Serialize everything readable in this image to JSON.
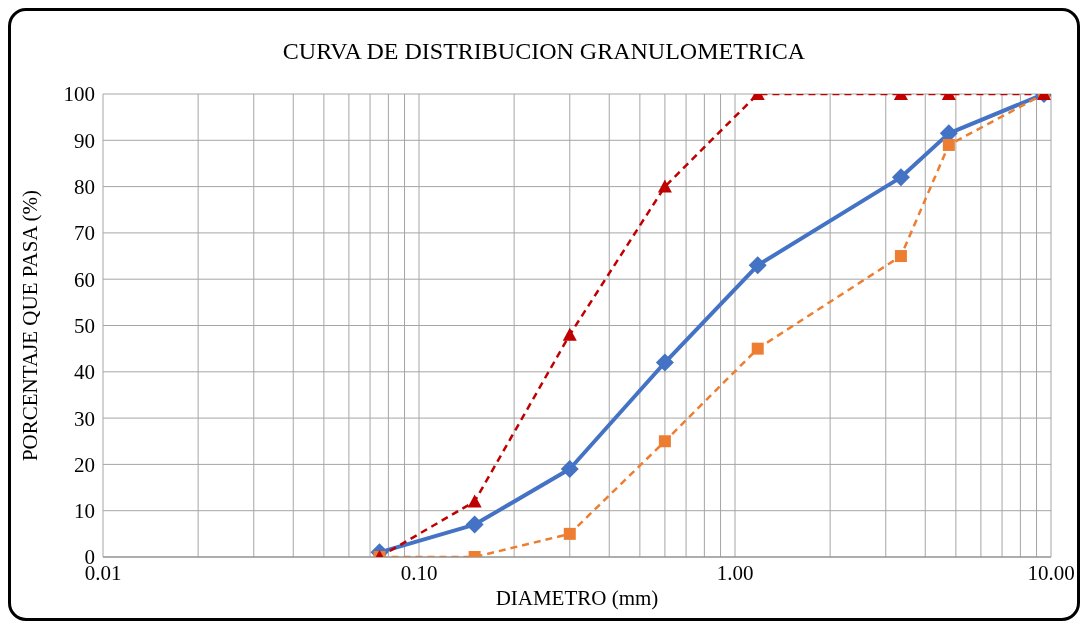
{
  "chart_data": {
    "type": "line",
    "title": "CURVA DE DISTRIBUCION GRANULOMETRICA",
    "xlabel": "DIAMETRO (mm)",
    "ylabel": "PORCENTAJE QUE PASA (%)",
    "log": "x",
    "x": [
      0.075,
      0.15,
      0.3,
      0.6,
      1.18,
      3.35,
      4.75,
      9.5
    ],
    "series": [
      {
        "color": "#4472c4",
        "marker": "diamond",
        "line_style": "solid",
        "values": [
          1,
          7,
          19,
          42,
          63,
          82,
          91.5,
          100
        ]
      },
      {
        "color": "#ed7d31",
        "marker": "square",
        "line_style": "dashed",
        "values": [
          0,
          0,
          5,
          25,
          45,
          65,
          89,
          100
        ]
      },
      {
        "color": "#c00000",
        "marker": "triangle",
        "line_style": "dashed",
        "values": [
          0,
          12,
          48,
          80,
          100,
          100,
          100,
          100
        ]
      }
    ],
    "xlim": [
      0.01,
      10
    ],
    "xticks": [
      {
        "value": 0.01,
        "label": "0.01"
      },
      {
        "value": 0.02,
        "label": null
      },
      {
        "value": 0.03,
        "label": null
      },
      {
        "value": 0.04,
        "label": null
      },
      {
        "value": 0.05,
        "label": null
      },
      {
        "value": 0.06,
        "label": null
      },
      {
        "value": 0.07,
        "label": null
      },
      {
        "value": 0.08,
        "label": null
      },
      {
        "value": 0.09,
        "label": null
      },
      {
        "value": 0.1,
        "label": "0.10"
      },
      {
        "value": 0.2,
        "label": null
      },
      {
        "value": 0.3,
        "label": null
      },
      {
        "value": 0.4,
        "label": null
      },
      {
        "value": 0.5,
        "label": null
      },
      {
        "value": 0.6,
        "label": null
      },
      {
        "value": 0.7,
        "label": null
      },
      {
        "value": 0.8,
        "label": null
      },
      {
        "value": 0.9,
        "label": null
      },
      {
        "value": 1,
        "label": "1.00"
      },
      {
        "value": 2,
        "label": null
      },
      {
        "value": 3,
        "label": null
      },
      {
        "value": 4,
        "label": null
      },
      {
        "value": 5,
        "label": null
      },
      {
        "value": 6,
        "label": null
      },
      {
        "value": 7,
        "label": null
      },
      {
        "value": 8,
        "label": null
      },
      {
        "value": 9,
        "label": null
      },
      {
        "value": 10,
        "label": "10.00"
      }
    ],
    "ylim": [
      0,
      100
    ],
    "yticks": [
      0,
      10,
      20,
      30,
      40,
      50,
      60,
      70,
      80,
      90,
      100
    ],
    "grid": true,
    "legend": false
  }
}
